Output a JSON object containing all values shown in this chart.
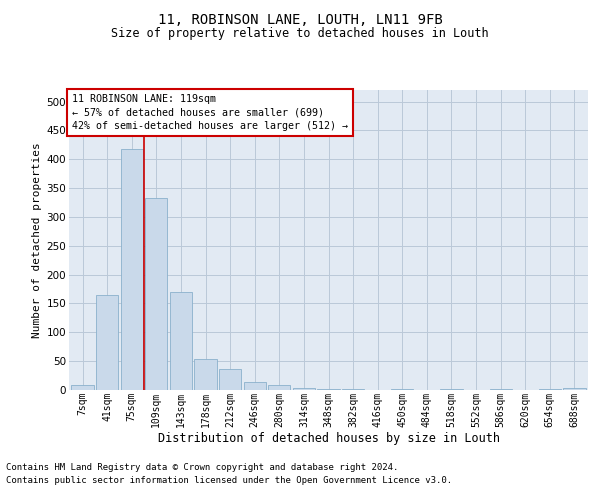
{
  "title_line1": "11, ROBINSON LANE, LOUTH, LN11 9FB",
  "title_line2": "Size of property relative to detached houses in Louth",
  "xlabel": "Distribution of detached houses by size in Louth",
  "ylabel": "Number of detached properties",
  "categories": [
    "7sqm",
    "41sqm",
    "75sqm",
    "109sqm",
    "143sqm",
    "178sqm",
    "212sqm",
    "246sqm",
    "280sqm",
    "314sqm",
    "348sqm",
    "382sqm",
    "416sqm",
    "450sqm",
    "484sqm",
    "518sqm",
    "552sqm",
    "586sqm",
    "620sqm",
    "654sqm",
    "688sqm"
  ],
  "values": [
    8,
    165,
    418,
    332,
    170,
    53,
    37,
    14,
    8,
    4,
    1,
    1,
    0,
    1,
    0,
    1,
    0,
    2,
    0,
    1,
    3
  ],
  "bar_color": "#c9d9ea",
  "bar_edge_color": "#8ab0cc",
  "grid_color": "#bac8d8",
  "background_color": "#e2eaf3",
  "vline_x": 2.5,
  "vline_color": "#cc0000",
  "ann_line1": "11 ROBINSON LANE: 119sqm",
  "ann_line2": "← 57% of detached houses are smaller (699)",
  "ann_line3": "42% of semi-detached houses are larger (512) →",
  "ann_edge_color": "#cc0000",
  "ann_face_color": "white",
  "footnote1": "Contains HM Land Registry data © Crown copyright and database right 2024.",
  "footnote2": "Contains public sector information licensed under the Open Government Licence v3.0.",
  "ylim": [
    0,
    520
  ],
  "yticks": [
    0,
    50,
    100,
    150,
    200,
    250,
    300,
    350,
    400,
    450,
    500
  ]
}
